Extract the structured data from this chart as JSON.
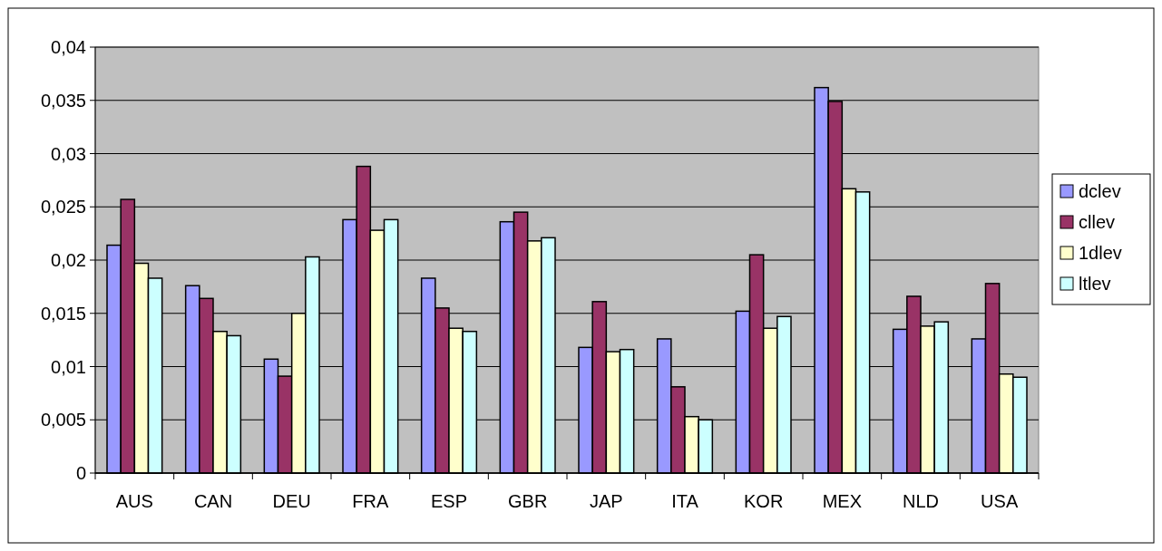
{
  "chart_data": {
    "type": "bar",
    "categories": [
      "AUS",
      "CAN",
      "DEU",
      "FRA",
      "ESP",
      "GBR",
      "JAP",
      "ITA",
      "KOR",
      "MEX",
      "NLD",
      "USA"
    ],
    "series": [
      {
        "name": "dclev",
        "color": "#9999ff",
        "values": [
          0.0214,
          0.0176,
          0.0107,
          0.0238,
          0.0183,
          0.0236,
          0.0118,
          0.0126,
          0.0152,
          0.0362,
          0.0135,
          0.0126
        ]
      },
      {
        "name": "cllev",
        "color": "#993366",
        "values": [
          0.0257,
          0.0164,
          0.0091,
          0.0288,
          0.0155,
          0.0245,
          0.0161,
          0.0081,
          0.0205,
          0.0349,
          0.0166,
          0.0178
        ]
      },
      {
        "name": "1dlev",
        "color": "#ffffcc",
        "values": [
          0.0197,
          0.0133,
          0.015,
          0.0228,
          0.0136,
          0.0218,
          0.0114,
          0.0053,
          0.0136,
          0.0267,
          0.0138,
          0.0093
        ]
      },
      {
        "name": "ltlev",
        "color": "#ccffff",
        "values": [
          0.0183,
          0.0129,
          0.0203,
          0.0238,
          0.0133,
          0.0221,
          0.0116,
          0.005,
          0.0147,
          0.0264,
          0.0142,
          0.009
        ]
      }
    ],
    "ylim": [
      0,
      0.04
    ],
    "yticks": [
      0,
      {
        "value": 0.005,
        "label": "0,005"
      },
      {
        "value": 0.01,
        "label": "0,01"
      },
      {
        "value": 0.015,
        "label": "0,015"
      },
      {
        "value": 0.02,
        "label": "0,02"
      },
      {
        "value": 0.025,
        "label": "0,025"
      },
      {
        "value": 0.03,
        "label": "0,03"
      },
      {
        "value": 0.035,
        "label": "0,035"
      },
      {
        "value": 0.04,
        "label": "0,04"
      }
    ],
    "grid": "y",
    "legend": "right"
  }
}
